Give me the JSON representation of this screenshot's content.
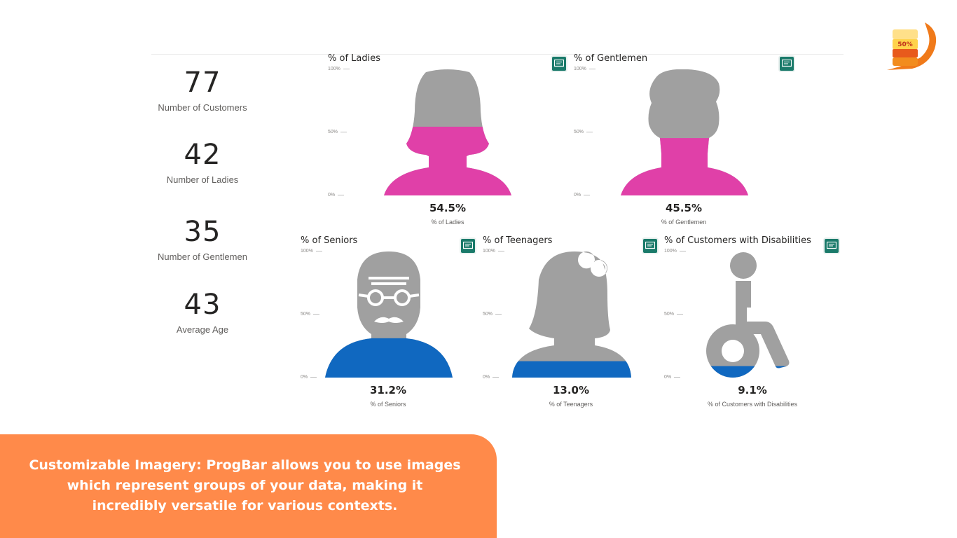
{
  "kpis": [
    {
      "value": "77",
      "label": "Number of Customers"
    },
    {
      "value": "42",
      "label": "Number of Ladies"
    },
    {
      "value": "35",
      "label": "Number of Gentlemen"
    },
    {
      "value": "43",
      "label": "Average Age"
    }
  ],
  "axis_ticks": [
    "100%",
    "50%",
    "0%"
  ],
  "visuals": [
    {
      "title": "% of Ladies",
      "percent_text": "54.5%",
      "subtitle": "% of Ladies",
      "fill_fraction": 0.545,
      "fill_color": "#e040a8",
      "image": "woman-icon"
    },
    {
      "title": "% of Gentlemen",
      "percent_text": "45.5%",
      "subtitle": "% of Gentlemen",
      "fill_fraction": 0.455,
      "fill_color": "#e040a8",
      "image": "man-icon"
    },
    {
      "title": "% of Seniors",
      "percent_text": "31.2%",
      "subtitle": "% of Seniors",
      "fill_fraction": 0.312,
      "fill_color": "#1068c0",
      "image": "senior-icon"
    },
    {
      "title": "% of Teenagers",
      "percent_text": "13.0%",
      "subtitle": "% of Teenagers",
      "fill_fraction": 0.13,
      "fill_color": "#1068c0",
      "image": "teen-girl-icon"
    },
    {
      "title": "% of Customers with Disabilities",
      "percent_text": "9.1%",
      "subtitle": "% of Customers with Disabilities",
      "fill_fraction": 0.091,
      "fill_color": "#1068c0",
      "image": "wheelchair-icon"
    }
  ],
  "logo": {
    "label": "50%",
    "colors": [
      "#ffd24a",
      "#f28c1e",
      "#e85a1c"
    ]
  },
  "banner": {
    "text": "Customizable Imagery: ProgBar allows you to use images which represent groups of your data, making it incredibly versatile for various contexts.",
    "color": "#ff8a4a"
  },
  "colors": {
    "empty_fill": "#a0a0a0",
    "icon_bg": "#1a7a6a"
  }
}
